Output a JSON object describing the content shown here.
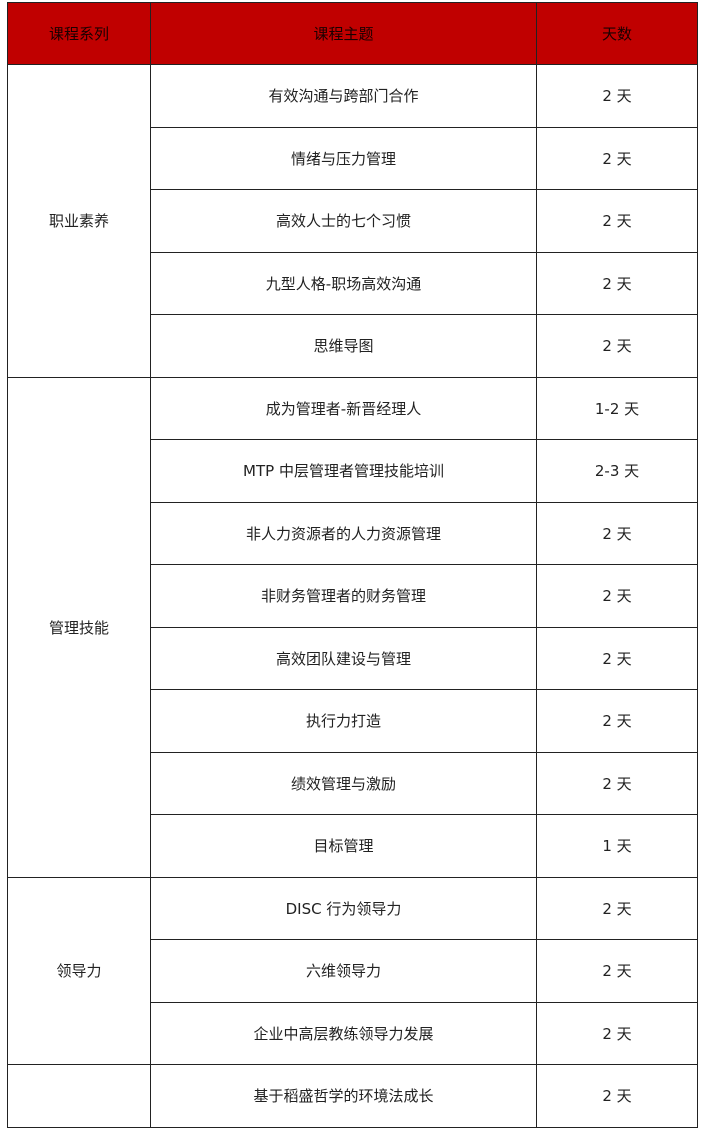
{
  "colors": {
    "header_bg": "#c00000"
  },
  "header": {
    "series": "课程系列",
    "topic": "课程主题",
    "days": "天数"
  },
  "groups": [
    {
      "series": "职业素养",
      "rows": [
        {
          "topic": "有效沟通与跨部门合作",
          "days": "2 天"
        },
        {
          "topic": "情绪与压力管理",
          "days": "2 天"
        },
        {
          "topic": "高效人士的七个习惯",
          "days": "2 天"
        },
        {
          "topic": "九型人格-职场高效沟通",
          "days": "2 天"
        },
        {
          "topic": "思维导图",
          "days": "2 天"
        }
      ]
    },
    {
      "series": "管理技能",
      "rows": [
        {
          "topic": "成为管理者-新晋经理人",
          "days": "1-2 天"
        },
        {
          "topic": "MTP 中层管理者管理技能培训",
          "days": "2-3 天"
        },
        {
          "topic": "非人力资源者的人力资源管理",
          "days": "2 天"
        },
        {
          "topic": "非财务管理者的财务管理",
          "days": "2 天"
        },
        {
          "topic": "高效团队建设与管理",
          "days": "2 天"
        },
        {
          "topic": "执行力打造",
          "days": "2 天"
        },
        {
          "topic": "绩效管理与激励",
          "days": "2 天"
        },
        {
          "topic": "目标管理",
          "days": "1 天"
        }
      ]
    },
    {
      "series": "领导力",
      "rows": [
        {
          "topic": "DISC 行为领导力",
          "days": "2 天"
        },
        {
          "topic": "六维领导力",
          "days": "2 天"
        },
        {
          "topic": "企业中高层教练领导力发展",
          "days": "2 天"
        }
      ]
    },
    {
      "series": "",
      "rows": [
        {
          "topic": "基于稻盛哲学的环境法成长",
          "days": "2 天"
        }
      ]
    }
  ]
}
